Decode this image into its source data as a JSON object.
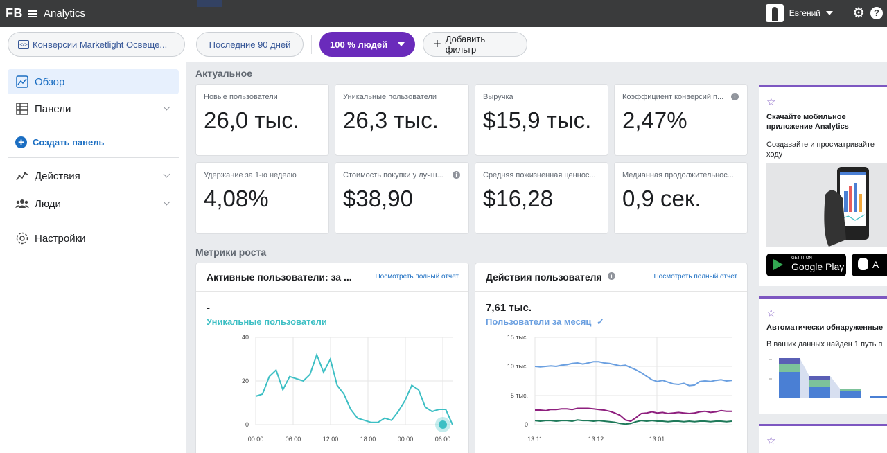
{
  "topbar": {
    "logo": "FB",
    "app_title": "Analytics",
    "user_name": "Евгений",
    "help_label": "?"
  },
  "filters": {
    "event_source": "Конверсии Marketlight Освеще...",
    "event_source_icon": "</>",
    "period": "Последние 90 дней",
    "audience": "100 % людей",
    "add_filter": "Добавить фильтр"
  },
  "sidebar": {
    "overview": "Обзор",
    "panels": "Панели",
    "create_panel": "Создать панель",
    "actions": "Действия",
    "people": "Люди",
    "settings": "Настройки"
  },
  "current": {
    "title": "Актуальное",
    "stats": [
      {
        "label": "Новые пользователи",
        "value": "26,0 тыс.",
        "info": false
      },
      {
        "label": "Уникальные пользователи",
        "value": "26,3 тыс.",
        "info": false
      },
      {
        "label": "Выручка",
        "value": "$15,9 тыс.",
        "info": false
      },
      {
        "label": "Коэффициент конверсий п...",
        "value": "2,47%",
        "info": true
      },
      {
        "label": "Удержание за 1-ю неделю",
        "value": "4,08%",
        "info": false
      },
      {
        "label": "Стоимость покупки у лучш...",
        "value": "$38,90",
        "info": true
      },
      {
        "label": "Средняя пожизненная ценнос...",
        "value": "$16,28",
        "info": false
      },
      {
        "label": "Медианная продолжительнос...",
        "value": "0,9 сек.",
        "info": false
      }
    ]
  },
  "growth": {
    "title": "Метрики роста",
    "active_users": {
      "title": "Активные пользователи: за ...",
      "link": "Посмотреть полный отчет",
      "big_value": "-",
      "metric": "Уникальные пользователи"
    },
    "user_actions": {
      "title": "Действия пользователя",
      "link": "Посмотреть полный отчет",
      "big_value": "7,61 тыс.",
      "metric": "Пользователи за месяц"
    }
  },
  "ads": {
    "app_promo": {
      "title": "Скачайте мобильное приложение Analytics",
      "text": "Создавайте и просматривайте ходу",
      "google_small": "GET IT ON",
      "google_big": "Google Play",
      "apple_big": "A"
    },
    "auto_detected": {
      "title": "Автоматически обнаруженные",
      "text": "В ваших данных найден 1 путь п"
    }
  },
  "chart_data": [
    {
      "type": "line",
      "title": "Активные пользователи: за ...",
      "series": [
        {
          "name": "Уникальные пользователи",
          "color": "#3dbfc4",
          "values": [
            13,
            14,
            22,
            25,
            16,
            22,
            21,
            20,
            23,
            32,
            24,
            30,
            18,
            14,
            7,
            3,
            2,
            1,
            1,
            3,
            2,
            6,
            11,
            18,
            16,
            8,
            6,
            7,
            7,
            0
          ]
        }
      ],
      "x_ticks": [
        "00:00",
        "06:00",
        "12:00",
        "18:00",
        "00:00",
        "06:00"
      ],
      "y_ticks": [
        "0",
        "20",
        "40"
      ],
      "ylim": [
        0,
        40
      ]
    },
    {
      "type": "line",
      "title": "Действия пользователя",
      "series": [
        {
          "color": "#6a9fe0",
          "values": [
            10,
            9.9,
            10,
            10.1,
            10,
            10.2,
            10.3,
            10.5,
            10.6,
            10.4,
            10.6,
            10.8,
            10.8,
            10.6,
            10.5,
            10.3,
            10.1,
            10.2,
            9.8,
            9.4,
            8.9,
            8.3,
            7.7,
            7.4,
            7.6,
            7.3,
            7.0,
            6.9,
            7.1,
            6.7,
            6.8,
            7.4,
            7.5,
            7.4,
            7.6,
            7.7,
            7.5,
            7.6
          ]
        },
        {
          "color": "#8e1f7e",
          "values": [
            2.5,
            2.5,
            2.4,
            2.6,
            2.6,
            2.7,
            2.7,
            2.6,
            2.8,
            2.8,
            2.8,
            2.7,
            2.6,
            2.5,
            2.3,
            2.0,
            1.6,
            0.8,
            0.6,
            1.2,
            1.9,
            2.0,
            2.2,
            2.0,
            2.1,
            1.9,
            2.0,
            2.1,
            2.0,
            1.9,
            2.0,
            2.2,
            2.3,
            2.1,
            2.2,
            2.4,
            2.3,
            2.3
          ]
        },
        {
          "color": "#1f7a5a",
          "values": [
            0.7,
            0.6,
            0.7,
            0.7,
            0.6,
            0.7,
            0.7,
            0.6,
            0.8,
            0.7,
            0.7,
            0.6,
            0.7,
            0.6,
            0.5,
            0.4,
            0.2,
            0.1,
            0.2,
            0.5,
            0.7,
            0.6,
            0.7,
            0.6,
            0.6,
            0.5,
            0.6,
            0.6,
            0.5,
            0.6,
            0.5,
            0.6,
            0.6,
            0.5,
            0.6,
            0.6,
            0.5,
            0.6
          ]
        }
      ],
      "x_ticks": [
        "13.11",
        "13.12",
        "13.01"
      ],
      "y_ticks": [
        "0",
        "5 тыс.",
        "10 тыс.",
        "15 тыс."
      ],
      "ylim": [
        0,
        15
      ]
    }
  ]
}
